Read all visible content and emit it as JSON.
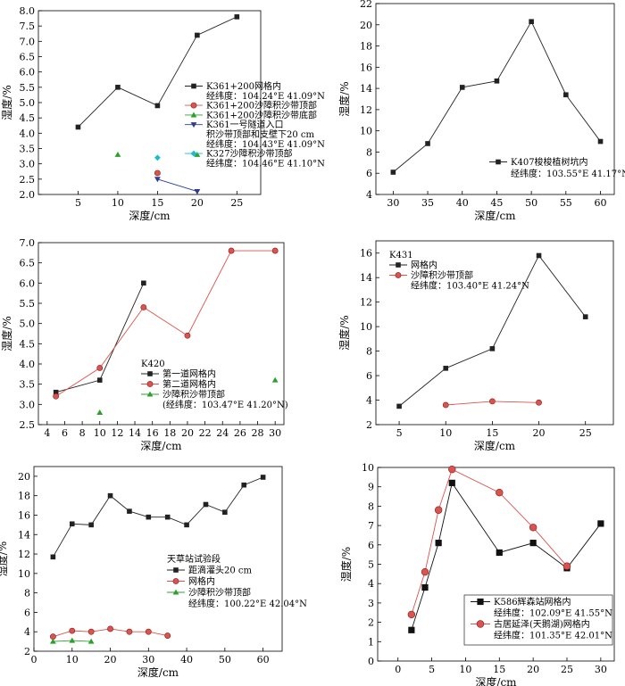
{
  "chart_data": [
    {
      "id": "p1",
      "type": "line",
      "xlabel": "深度/cm",
      "ylabel": "湿度/%",
      "xlim": [
        0,
        28
      ],
      "ylim": [
        2.0,
        8.0
      ],
      "xticks": [
        5,
        10,
        15,
        20,
        25
      ],
      "yticks": [
        2.0,
        2.5,
        3.0,
        3.5,
        4.0,
        4.5,
        5.0,
        5.5,
        6.0,
        6.5,
        7.0,
        7.5,
        8.0
      ],
      "ytick_decimals": 1,
      "legend": {
        "position": "right",
        "entries": [
          {
            "series": 0,
            "label": "K361+200网格内"
          },
          {
            "text": "经纬度：104.24°E  41.09°N"
          },
          {
            "series": 1,
            "label": "K361+200沙障积沙带顶部"
          },
          {
            "series": 2,
            "label": "K361+200沙障积沙带底部"
          },
          {
            "series": 3,
            "label": "K361一号隧道入口"
          },
          {
            "text": "积沙带顶部和支壁下20 cm"
          },
          {
            "text": "经纬度：104.43°E  41.09°N"
          },
          {
            "series": 4,
            "label": "K327沙障积沙带顶部"
          },
          {
            "text": "经纬度：104.46°E  41.10°N"
          }
        ]
      },
      "series": [
        {
          "name": "K361+200网格内",
          "marker": "square",
          "color": "#222222",
          "line": true,
          "x": [
            5,
            10,
            15,
            20,
            25
          ],
          "y": [
            4.2,
            5.5,
            4.9,
            7.2,
            7.8
          ]
        },
        {
          "name": "K361+200沙障积沙带顶部",
          "marker": "circle",
          "color": "#d9534f",
          "line": false,
          "x": [
            15
          ],
          "y": [
            2.7
          ]
        },
        {
          "name": "K361+200沙障积沙带底部",
          "marker": "triangle",
          "color": "#2ca02c",
          "line": false,
          "x": [
            10,
            20
          ],
          "y": [
            3.3,
            3.3
          ]
        },
        {
          "name": "K361一号隧道入口",
          "marker": "triangle-down",
          "color": "#2f3b8f",
          "line": true,
          "x": [
            15,
            20
          ],
          "y": [
            2.5,
            2.1
          ]
        },
        {
          "name": "K327沙障积沙带顶部",
          "marker": "diamond",
          "color": "#17becf",
          "line": false,
          "x": [
            15
          ],
          "y": [
            3.2
          ]
        }
      ]
    },
    {
      "id": "p2",
      "type": "line",
      "xlabel": "深度/cm",
      "ylabel": "湿度/%",
      "xlim": [
        27.5,
        62
      ],
      "ylim": [
        4,
        22
      ],
      "xticks": [
        30,
        35,
        40,
        45,
        50,
        55,
        60
      ],
      "yticks": [
        4,
        6,
        8,
        10,
        12,
        14,
        16,
        18,
        20,
        22
      ],
      "ytick_decimals": 0,
      "legend": {
        "position": "bottom-right",
        "entries": [
          {
            "series": 0,
            "label": "K407梭梭植树坑内"
          },
          {
            "text": "经纬度：103.55°E  41.17°N"
          }
        ]
      },
      "series": [
        {
          "name": "K407梭梭植树坑内",
          "marker": "square",
          "color": "#222222",
          "line": true,
          "x": [
            30,
            35,
            40,
            45,
            50,
            55,
            60
          ],
          "y": [
            6.1,
            8.8,
            14.1,
            14.7,
            20.3,
            13.4,
            9.0
          ]
        }
      ]
    },
    {
      "id": "p3",
      "type": "line",
      "xlabel": "深度/cm",
      "ylabel": "湿度/%",
      "xlim": [
        3,
        31
      ],
      "ylim": [
        2.5,
        7.0
      ],
      "xticks": [
        4,
        6,
        8,
        10,
        12,
        14,
        16,
        18,
        20,
        22,
        24,
        26,
        28,
        30
      ],
      "yticks": [
        2.5,
        3.0,
        3.5,
        4.0,
        4.5,
        5.0,
        5.5,
        6.0,
        6.5,
        7.0
      ],
      "ytick_decimals": 1,
      "legend": {
        "position": "bottom-center",
        "entries": [
          {
            "text": "K420"
          },
          {
            "series": 0,
            "label": "第一道网格内"
          },
          {
            "series": 1,
            "label": "第二道网格内"
          },
          {
            "series": 2,
            "label": "沙障积沙带顶部"
          },
          {
            "text": "(经纬度：103.47°E  41.20°N)"
          }
        ]
      },
      "series": [
        {
          "name": "第一道网格内",
          "marker": "square",
          "color": "#222222",
          "line": true,
          "x": [
            5,
            10,
            15
          ],
          "y": [
            3.3,
            3.6,
            6.0
          ]
        },
        {
          "name": "第二道网格内",
          "marker": "circle",
          "color": "#d9534f",
          "line": true,
          "x": [
            5,
            10,
            15,
            20,
            25,
            30
          ],
          "y": [
            3.2,
            3.9,
            5.4,
            4.7,
            6.8,
            6.8
          ]
        },
        {
          "name": "沙障积沙带顶部",
          "marker": "triangle",
          "color": "#2ca02c",
          "line": false,
          "x": [
            10,
            30
          ],
          "y": [
            2.8,
            3.6
          ]
        }
      ]
    },
    {
      "id": "p4",
      "type": "line",
      "xlabel": "深度/cm",
      "ylabel": "湿度/%",
      "xlim": [
        2.5,
        28
      ],
      "ylim": [
        2,
        17
      ],
      "xticks": [
        5,
        10,
        15,
        20,
        25
      ],
      "yticks": [
        2,
        4,
        6,
        8,
        10,
        12,
        14,
        16
      ],
      "ytick_decimals": 0,
      "legend": {
        "position": "top-left",
        "entries": [
          {
            "text": "K431"
          },
          {
            "series": 0,
            "label": "网格内"
          },
          {
            "series": 1,
            "label": "沙障积沙带顶部"
          },
          {
            "text": "经纬度：103.40°E  41.24°N"
          }
        ]
      },
      "series": [
        {
          "name": "网格内",
          "marker": "square",
          "color": "#222222",
          "line": true,
          "x": [
            5,
            10,
            15,
            20,
            25
          ],
          "y": [
            3.5,
            6.6,
            8.2,
            15.8,
            10.8
          ]
        },
        {
          "name": "沙障积沙带顶部",
          "marker": "circle",
          "color": "#d9534f",
          "line": true,
          "x": [
            10,
            15,
            20
          ],
          "y": [
            3.6,
            3.9,
            3.8
          ]
        }
      ]
    },
    {
      "id": "p5",
      "type": "line",
      "xlabel": "深度/cm",
      "ylabel": "湿度/%",
      "xlim": [
        0,
        65
      ],
      "ylim": [
        2,
        21
      ],
      "xticks": [
        0,
        10,
        20,
        30,
        40,
        50,
        60
      ],
      "yticks": [
        2,
        4,
        6,
        8,
        10,
        12,
        14,
        16,
        18,
        20
      ],
      "ytick_decimals": 0,
      "legend": {
        "position": "center-right",
        "entries": [
          {
            "text": "天草站试验段"
          },
          {
            "series": 0,
            "label": "距滴灌头20 cm"
          },
          {
            "series": 1,
            "label": "网格内"
          },
          {
            "series": 2,
            "label": "沙障积沙带顶部"
          },
          {
            "text": "经纬度：100.22°E  42.04°N"
          }
        ]
      },
      "series": [
        {
          "name": "距滴灌头20 cm",
          "marker": "square",
          "color": "#222222",
          "line": true,
          "x": [
            5,
            10,
            15,
            20,
            25,
            30,
            35,
            40,
            45,
            50,
            55,
            60
          ],
          "y": [
            11.7,
            15.1,
            15.0,
            18.0,
            16.4,
            15.8,
            15.8,
            15.0,
            17.1,
            16.3,
            19.1,
            19.9
          ]
        },
        {
          "name": "网格内",
          "marker": "circle",
          "color": "#d9534f",
          "line": true,
          "x": [
            5,
            10,
            15,
            20,
            25,
            30,
            35
          ],
          "y": [
            3.5,
            4.1,
            4.0,
            4.3,
            4.0,
            4.0,
            3.6
          ]
        },
        {
          "name": "沙障积沙带顶部",
          "marker": "triangle",
          "color": "#2ca02c",
          "line": true,
          "x": [
            5,
            10,
            15
          ],
          "y": [
            3.0,
            3.1,
            3.0
          ]
        }
      ]
    },
    {
      "id": "p6",
      "type": "line",
      "xlabel": "深度/cm",
      "ylabel": "湿度/%",
      "xlim": [
        -3,
        32
      ],
      "ylim": [
        0,
        10
      ],
      "xticks": [
        0,
        5,
        10,
        15,
        20,
        25,
        30
      ],
      "yticks": [
        0,
        1,
        2,
        3,
        4,
        5,
        6,
        7,
        8,
        9,
        10
      ],
      "ytick_decimals": 0,
      "legend": {
        "position": "bottom-right",
        "boxed": true,
        "entries": [
          {
            "series": 0,
            "label": "K586辉森站网格内"
          },
          {
            "text": "经纬度：102.09°E  41.55°N"
          },
          {
            "series": 1,
            "label": "古居延泽(天鹅湖)网格内"
          },
          {
            "text": "经纬度：101.35°E  42.01°N"
          }
        ]
      },
      "series": [
        {
          "name": "K586辉森站网格内",
          "marker": "square",
          "color": "#111111",
          "line": true,
          "big": true,
          "x": [
            2,
            4,
            6,
            8,
            15,
            20,
            25,
            30
          ],
          "y": [
            1.6,
            3.8,
            6.1,
            9.2,
            5.6,
            6.1,
            4.8,
            7.1
          ]
        },
        {
          "name": "古居延泽(天鹅湖)网格内",
          "marker": "circle",
          "color": "#d9534f",
          "line": true,
          "big": true,
          "x": [
            2,
            4,
            6,
            8,
            15,
            20,
            25
          ],
          "y": [
            2.4,
            4.6,
            7.8,
            9.9,
            8.7,
            6.9,
            4.9
          ]
        }
      ]
    }
  ]
}
